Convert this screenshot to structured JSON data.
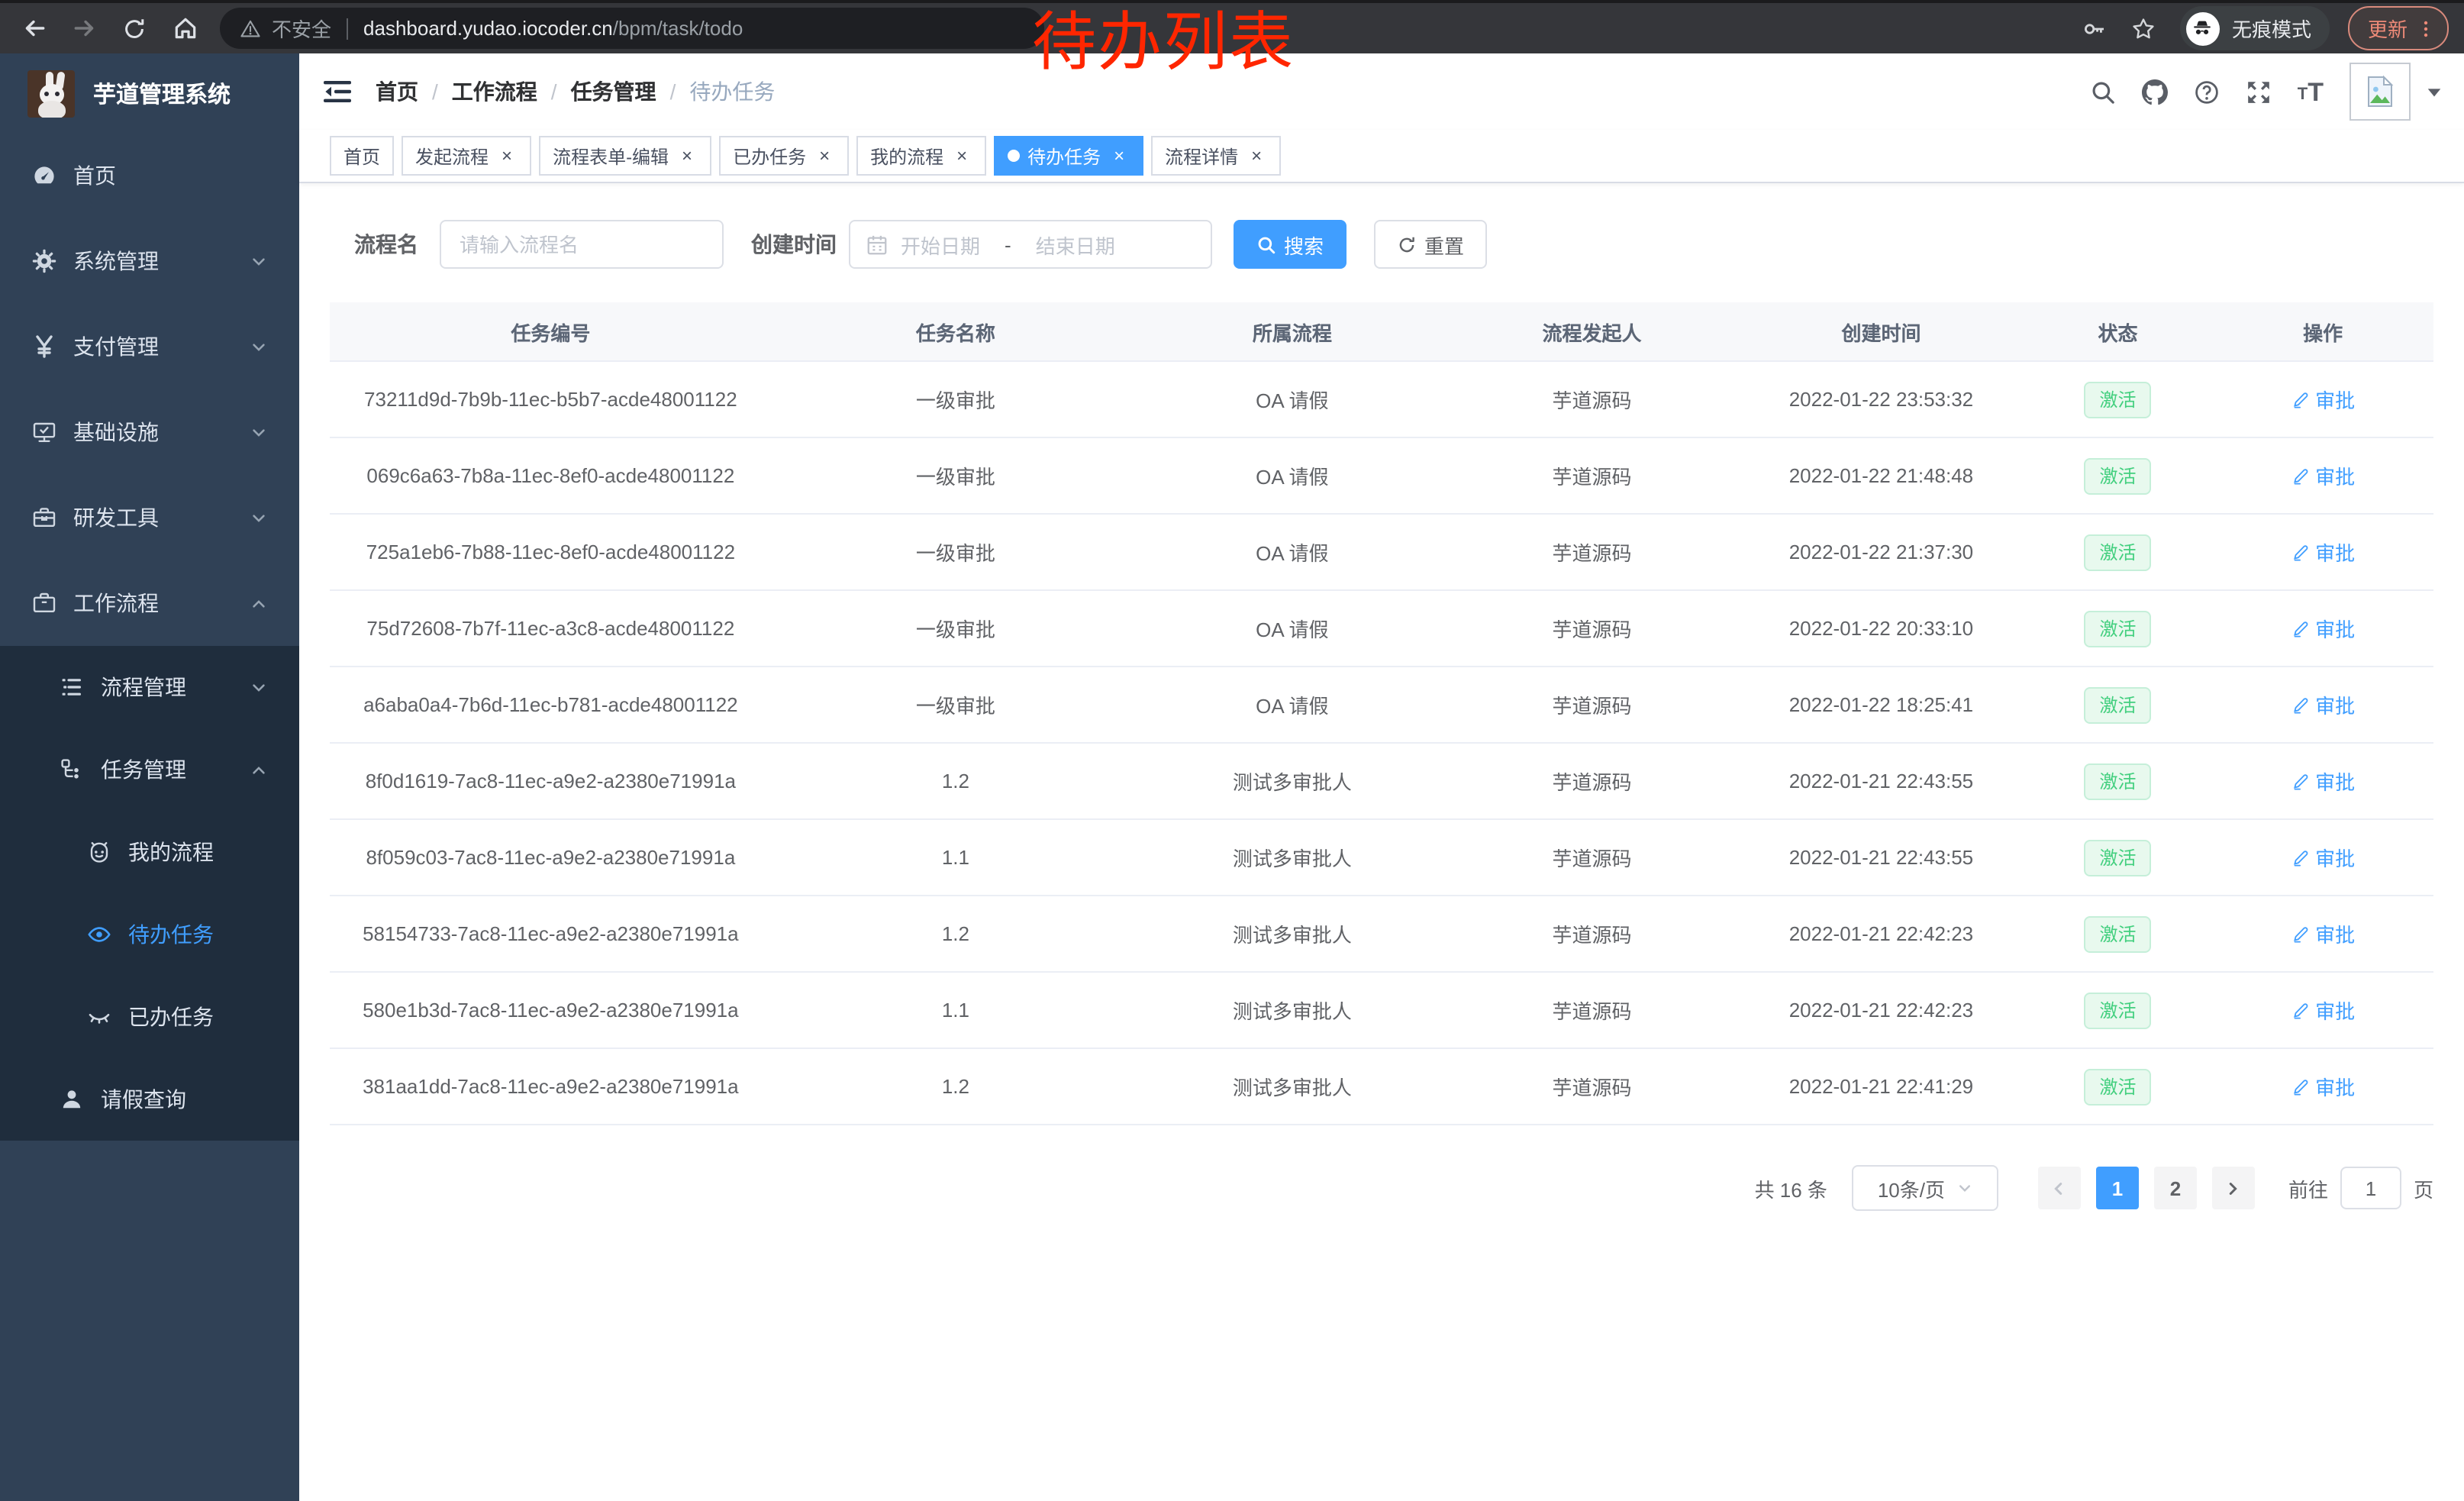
{
  "browser": {
    "security_label": "不安全",
    "url_host": "dashboard.yudao.iocoder.cn",
    "url_path": "/bpm/task/todo",
    "incognito_label": "无痕模式",
    "update_label": "更新"
  },
  "annotation": {
    "text": "待办列表",
    "color": "#ff2600"
  },
  "sidebar": {
    "title": "芋道管理系统",
    "menu": [
      {
        "label": "首页",
        "icon": "dashboard-icon",
        "level": 1
      },
      {
        "label": "系统管理",
        "icon": "gear-icon",
        "level": 1,
        "chevron": "down"
      },
      {
        "label": "支付管理",
        "icon": "yen-icon",
        "level": 1,
        "chevron": "down"
      },
      {
        "label": "基础设施",
        "icon": "monitor-icon",
        "level": 1,
        "chevron": "down"
      },
      {
        "label": "研发工具",
        "icon": "toolbox-icon",
        "level": 1,
        "chevron": "down"
      },
      {
        "label": "工作流程",
        "icon": "briefcase-icon",
        "level": 1,
        "chevron": "up"
      },
      {
        "label": "流程管理",
        "icon": "list-icon",
        "level": 2,
        "chevron": "down",
        "dark": true
      },
      {
        "label": "任务管理",
        "icon": "flow-icon",
        "level": 2,
        "chevron": "up",
        "dark": true
      },
      {
        "label": "我的流程",
        "icon": "robot-icon",
        "level": 3,
        "dark": true
      },
      {
        "label": "待办任务",
        "icon": "eye-icon",
        "level": 3,
        "dark": true,
        "active": true
      },
      {
        "label": "已办任务",
        "icon": "eye-closed-icon",
        "level": 3,
        "dark": true
      },
      {
        "label": "请假查询",
        "icon": "user-icon",
        "level": 2,
        "dark": true
      }
    ]
  },
  "header": {
    "breadcrumb": [
      "首页",
      "工作流程",
      "任务管理",
      "待办任务"
    ]
  },
  "tabs": [
    {
      "label": "首页",
      "closable": false,
      "active": false
    },
    {
      "label": "发起流程",
      "closable": true,
      "active": false
    },
    {
      "label": "流程表单-编辑",
      "closable": true,
      "active": false
    },
    {
      "label": "已办任务",
      "closable": true,
      "active": false
    },
    {
      "label": "我的流程",
      "closable": true,
      "active": false
    },
    {
      "label": "待办任务",
      "closable": true,
      "active": true
    },
    {
      "label": "流程详情",
      "closable": true,
      "active": false
    }
  ],
  "filters": {
    "name_label": "流程名",
    "name_placeholder": "请输入流程名",
    "time_label": "创建时间",
    "start_placeholder": "开始日期",
    "range_separator": "-",
    "end_placeholder": "结束日期",
    "search_label": "搜索",
    "reset_label": "重置"
  },
  "table": {
    "columns": [
      "任务编号",
      "任务名称",
      "所属流程",
      "流程发起人",
      "创建时间",
      "状态",
      "操作"
    ],
    "rows": [
      {
        "id": "73211d9d-7b9b-11ec-b5b7-acde48001122",
        "name": "一级审批",
        "process": "OA 请假",
        "starter": "芋道源码",
        "time": "2022-01-22 23:53:32",
        "status": "激活",
        "action": "审批"
      },
      {
        "id": "069c6a63-7b8a-11ec-8ef0-acde48001122",
        "name": "一级审批",
        "process": "OA 请假",
        "starter": "芋道源码",
        "time": "2022-01-22 21:48:48",
        "status": "激活",
        "action": "审批"
      },
      {
        "id": "725a1eb6-7b88-11ec-8ef0-acde48001122",
        "name": "一级审批",
        "process": "OA 请假",
        "starter": "芋道源码",
        "time": "2022-01-22 21:37:30",
        "status": "激活",
        "action": "审批"
      },
      {
        "id": "75d72608-7b7f-11ec-a3c8-acde48001122",
        "name": "一级审批",
        "process": "OA 请假",
        "starter": "芋道源码",
        "time": "2022-01-22 20:33:10",
        "status": "激活",
        "action": "审批"
      },
      {
        "id": "a6aba0a4-7b6d-11ec-b781-acde48001122",
        "name": "一级审批",
        "process": "OA 请假",
        "starter": "芋道源码",
        "time": "2022-01-22 18:25:41",
        "status": "激活",
        "action": "审批"
      },
      {
        "id": "8f0d1619-7ac8-11ec-a9e2-a2380e71991a",
        "name": "1.2",
        "process": "测试多审批人",
        "starter": "芋道源码",
        "time": "2022-01-21 22:43:55",
        "status": "激活",
        "action": "审批"
      },
      {
        "id": "8f059c03-7ac8-11ec-a9e2-a2380e71991a",
        "name": "1.1",
        "process": "测试多审批人",
        "starter": "芋道源码",
        "time": "2022-01-21 22:43:55",
        "status": "激活",
        "action": "审批"
      },
      {
        "id": "58154733-7ac8-11ec-a9e2-a2380e71991a",
        "name": "1.2",
        "process": "测试多审批人",
        "starter": "芋道源码",
        "time": "2022-01-21 22:42:23",
        "status": "激活",
        "action": "审批"
      },
      {
        "id": "580e1b3d-7ac8-11ec-a9e2-a2380e71991a",
        "name": "1.1",
        "process": "测试多审批人",
        "starter": "芋道源码",
        "time": "2022-01-21 22:42:23",
        "status": "激活",
        "action": "审批"
      },
      {
        "id": "381aa1dd-7ac8-11ec-a9e2-a2380e71991a",
        "name": "1.2",
        "process": "测试多审批人",
        "starter": "芋道源码",
        "time": "2022-01-21 22:41:29",
        "status": "激活",
        "action": "审批"
      }
    ]
  },
  "pagination": {
    "total_label": "共 16 条",
    "page_size": "10条/页",
    "pages": [
      "1",
      "2"
    ],
    "active_page": "1",
    "goto_label": "前往",
    "goto_value": "1",
    "unit_label": "页"
  },
  "colors": {
    "primary": "#409eff",
    "sidebar_bg": "#304156",
    "sidebar_submenu_bg": "#1f2d3d",
    "success_text": "#42cf7e",
    "success_bg": "#e8f9ee",
    "annotation": "#ff2600",
    "chrome_bg": "#35363a",
    "omnibox_bg": "#1e1f23"
  }
}
